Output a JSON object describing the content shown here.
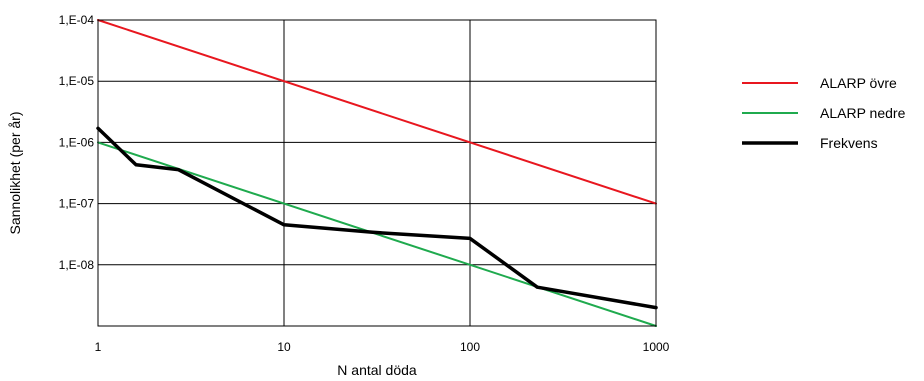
{
  "chart_data": {
    "type": "line",
    "xscale": "log",
    "yscale": "log",
    "xlim": [
      1,
      1000
    ],
    "ylim": [
      1e-09,
      0.0001
    ],
    "xlabel": "N antal döda",
    "ylabel": "Sannolikhet (per år)",
    "x_ticks": [
      {
        "value": 1,
        "label": "1"
      },
      {
        "value": 10,
        "label": "10"
      },
      {
        "value": 100,
        "label": "100"
      },
      {
        "value": 1000,
        "label": "1000"
      }
    ],
    "y_ticks": [
      {
        "value": 0.0001,
        "label": "1,E-04"
      },
      {
        "value": 1e-05,
        "label": "1,E-05"
      },
      {
        "value": 1e-06,
        "label": "1,E-06"
      },
      {
        "value": 1e-07,
        "label": "1,E-07"
      },
      {
        "value": 1e-08,
        "label": "1,E-08"
      }
    ],
    "grid": true,
    "legend_position": "right",
    "series": [
      {
        "name": "ALARP övre",
        "color": "#e8171f",
        "line_width": 2,
        "x": [
          1,
          1000
        ],
        "y": [
          0.0001,
          1e-07
        ]
      },
      {
        "name": "ALARP nedre",
        "color": "#1faa4e",
        "line_width": 2,
        "x": [
          1,
          1000
        ],
        "y": [
          1e-06,
          1e-09
        ]
      },
      {
        "name": "Frekvens",
        "color": "#000000",
        "line_width": 3.5,
        "x": [
          1,
          1.6,
          2.7,
          10,
          30,
          100,
          230,
          1000
        ],
        "y": [
          1.7e-06,
          4.3e-07,
          3.6e-07,
          4.5e-08,
          3.4e-08,
          2.7e-08,
          4.3e-09,
          2e-09
        ]
      }
    ]
  }
}
